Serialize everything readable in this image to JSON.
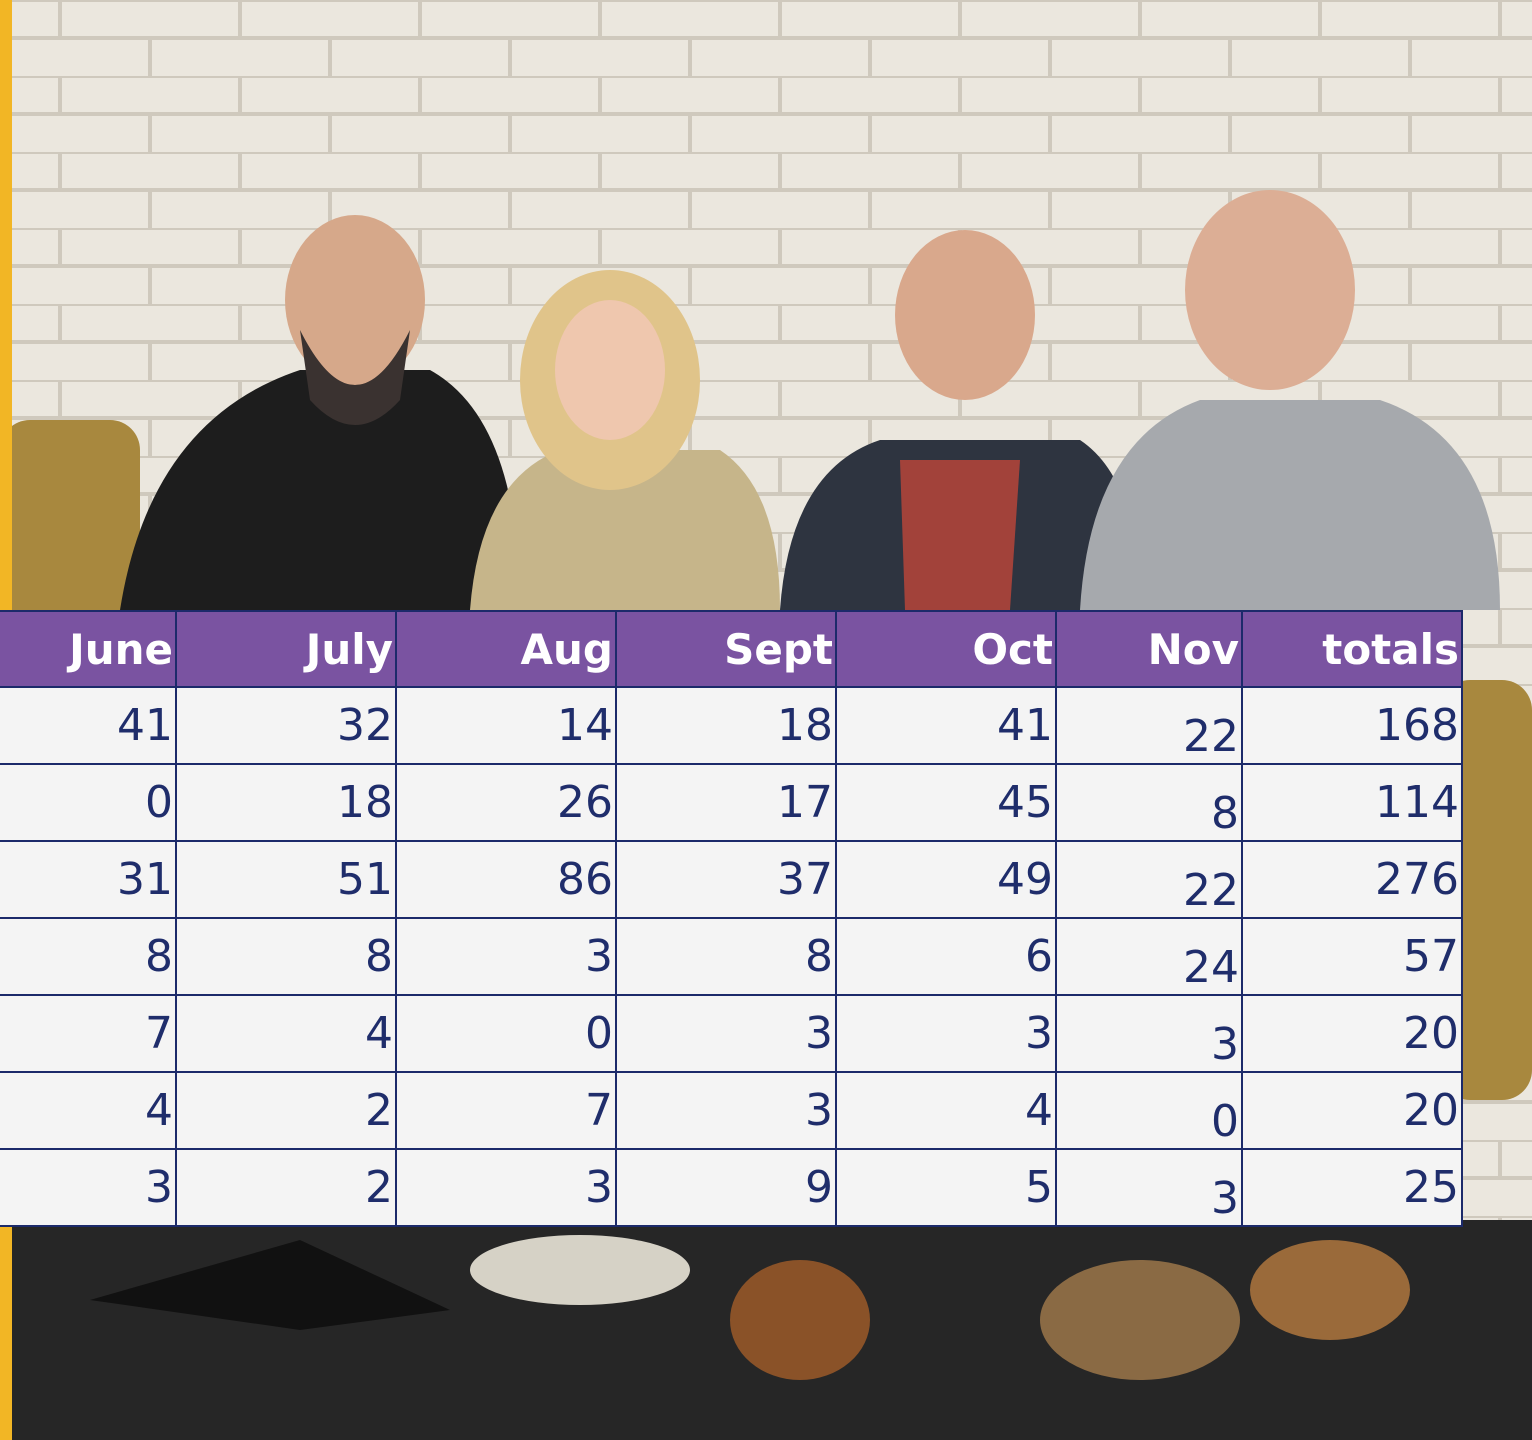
{
  "table": {
    "headers": [
      "June",
      "July",
      "Aug",
      "Sept",
      "Oct",
      "Nov",
      "totals"
    ],
    "rows": [
      [
        41,
        32,
        14,
        18,
        41,
        22,
        168
      ],
      [
        0,
        18,
        26,
        17,
        45,
        8,
        114
      ],
      [
        31,
        51,
        86,
        37,
        49,
        22,
        276
      ],
      [
        8,
        8,
        3,
        8,
        6,
        24,
        57
      ],
      [
        7,
        4,
        0,
        3,
        3,
        3,
        20
      ],
      [
        4,
        2,
        7,
        3,
        4,
        0,
        20
      ],
      [
        3,
        2,
        3,
        9,
        5,
        3,
        25
      ]
    ]
  }
}
